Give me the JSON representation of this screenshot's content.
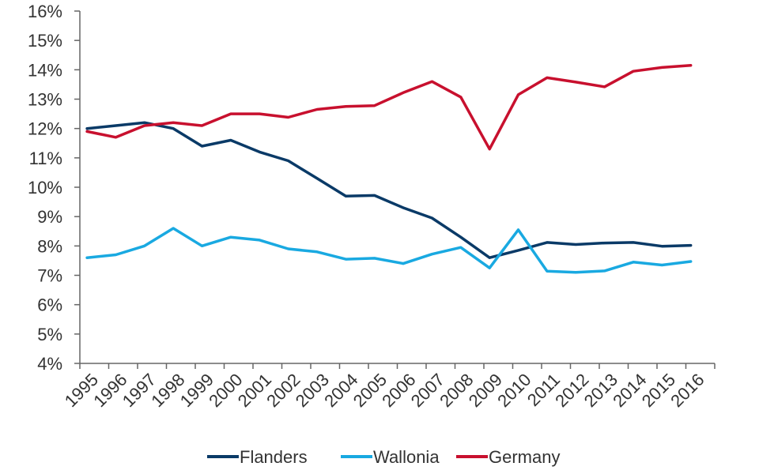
{
  "chart_data": {
    "type": "line",
    "title": "",
    "xlabel": "",
    "ylabel": "",
    "categories": [
      "1995",
      "1996",
      "1997",
      "1998",
      "1999",
      "2000",
      "2001",
      "2002",
      "2003",
      "2004",
      "2005",
      "2006",
      "2007",
      "2008",
      "2009",
      "2010",
      "2011",
      "2012",
      "2013",
      "2014",
      "2015",
      "2016"
    ],
    "x_points": [
      1995.3,
      1996.5,
      1997.7,
      1998.9,
      2000.1,
      2001.3,
      2002.5,
      2003.7,
      2004.9,
      2006.1,
      2007.3,
      2008.5,
      2009.7,
      2010.9,
      2012.1,
      2013.3,
      2014.5,
      2015.7,
      2016.9,
      2018.1,
      2019.3,
      2020.5
    ],
    "yticks": [
      "4%",
      "5%",
      "6%",
      "7%",
      "8%",
      "9%",
      "10%",
      "11%",
      "12%",
      "13%",
      "14%",
      "15%",
      "16%"
    ],
    "ylim": [
      4,
      16
    ],
    "grid": false,
    "legend_position": "bottom",
    "series": [
      {
        "name": "Flanders",
        "color": "#0a3a67",
        "values": [
          12.0,
          12.1,
          12.2,
          12.0,
          11.4,
          11.6,
          11.2,
          10.9,
          10.3,
          9.7,
          9.72,
          9.3,
          8.95,
          8.3,
          7.6,
          7.85,
          8.12,
          8.05,
          8.1,
          8.12,
          7.99,
          8.02
        ]
      },
      {
        "name": "Wallonia",
        "color": "#19a9e1",
        "values": [
          7.6,
          7.7,
          8.0,
          8.6,
          8.0,
          8.3,
          8.2,
          7.9,
          7.8,
          7.55,
          7.58,
          7.4,
          7.72,
          7.95,
          7.25,
          8.55,
          7.14,
          7.1,
          7.15,
          7.45,
          7.35,
          7.47
        ]
      },
      {
        "name": "Germany",
        "color": "#c8102e",
        "values": [
          11.9,
          11.7,
          12.1,
          12.2,
          12.1,
          12.5,
          12.5,
          12.38,
          12.65,
          12.75,
          12.78,
          13.22,
          13.6,
          13.07,
          11.3,
          13.15,
          13.73,
          13.58,
          13.42,
          13.95,
          14.08,
          14.15
        ]
      }
    ]
  }
}
